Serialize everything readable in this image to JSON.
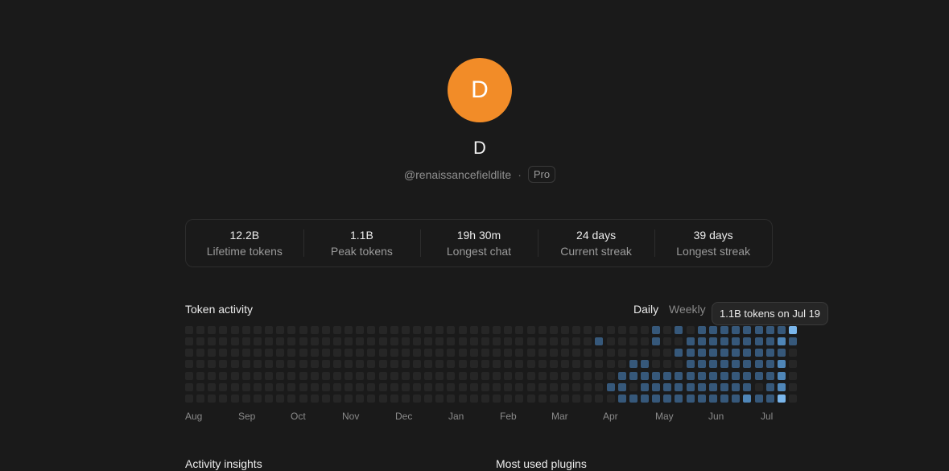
{
  "profile": {
    "avatar_letter": "D",
    "avatar_color": "#f28c28",
    "display_name": "D",
    "handle": "@renaissancefieldlite",
    "separator": "·",
    "plan": "Pro"
  },
  "stats": [
    {
      "value": "12.2B",
      "label": "Lifetime tokens"
    },
    {
      "value": "1.1B",
      "label": "Peak tokens"
    },
    {
      "value": "19h 30m",
      "label": "Longest chat"
    },
    {
      "value": "24 days",
      "label": "Current streak"
    },
    {
      "value": "39 days",
      "label": "Longest streak"
    }
  ],
  "activity": {
    "title": "Token activity",
    "toggle_daily": "Daily",
    "toggle_weekly": "Weekly",
    "selected_view": "Daily",
    "tooltip": "1.1B tokens on Jul 19",
    "months": [
      "Aug",
      "Sep",
      "Oct",
      "Nov",
      "Dec",
      "Jan",
      "Feb",
      "Mar",
      "Apr",
      "May",
      "Jun",
      "Jul"
    ],
    "colors": {
      "level0": "#262626",
      "level1": "#2c3d52",
      "level2": "#36587a",
      "level3": "#4f86b8",
      "level4": "#7ab6eb"
    },
    "levels_by_week": [
      [
        0,
        0,
        0,
        0,
        0,
        0,
        0
      ],
      [
        0,
        0,
        0,
        0,
        0,
        0,
        0
      ],
      [
        0,
        0,
        0,
        0,
        0,
        0,
        0
      ],
      [
        0,
        0,
        0,
        0,
        0,
        0,
        0
      ],
      [
        0,
        0,
        0,
        0,
        0,
        0,
        0
      ],
      [
        0,
        0,
        0,
        0,
        0,
        0,
        0
      ],
      [
        0,
        0,
        0,
        0,
        0,
        0,
        0
      ],
      [
        0,
        0,
        0,
        0,
        0,
        0,
        0
      ],
      [
        0,
        0,
        0,
        0,
        0,
        0,
        0
      ],
      [
        0,
        0,
        0,
        0,
        0,
        0,
        0
      ],
      [
        0,
        0,
        0,
        0,
        0,
        0,
        0
      ],
      [
        0,
        0,
        0,
        0,
        0,
        0,
        0
      ],
      [
        0,
        0,
        0,
        0,
        0,
        0,
        0
      ],
      [
        0,
        0,
        0,
        0,
        0,
        0,
        0
      ],
      [
        0,
        0,
        0,
        0,
        0,
        0,
        0
      ],
      [
        0,
        0,
        0,
        0,
        0,
        0,
        0
      ],
      [
        0,
        0,
        0,
        0,
        0,
        0,
        0
      ],
      [
        0,
        0,
        0,
        0,
        0,
        0,
        0
      ],
      [
        0,
        0,
        0,
        0,
        0,
        0,
        0
      ],
      [
        0,
        0,
        0,
        0,
        0,
        0,
        0
      ],
      [
        0,
        0,
        0,
        0,
        0,
        0,
        0
      ],
      [
        0,
        0,
        0,
        0,
        0,
        0,
        0
      ],
      [
        0,
        0,
        0,
        0,
        0,
        0,
        0
      ],
      [
        0,
        0,
        0,
        0,
        0,
        0,
        0
      ],
      [
        0,
        0,
        0,
        0,
        0,
        0,
        0
      ],
      [
        0,
        0,
        0,
        0,
        0,
        0,
        0
      ],
      [
        0,
        0,
        0,
        0,
        0,
        0,
        0
      ],
      [
        0,
        0,
        0,
        0,
        0,
        0,
        0
      ],
      [
        0,
        0,
        0,
        0,
        0,
        0,
        0
      ],
      [
        0,
        0,
        0,
        0,
        0,
        0,
        0
      ],
      [
        0,
        0,
        0,
        0,
        0,
        0,
        0
      ],
      [
        0,
        0,
        0,
        0,
        0,
        0,
        0
      ],
      [
        0,
        0,
        0,
        0,
        0,
        0,
        0
      ],
      [
        0,
        0,
        0,
        0,
        0,
        0,
        0
      ],
      [
        0,
        0,
        0,
        0,
        0,
        0,
        0
      ],
      [
        0,
        0,
        0,
        0,
        0,
        0,
        0
      ],
      [
        0,
        2,
        0,
        0,
        0,
        0,
        0
      ],
      [
        0,
        0,
        0,
        0,
        0,
        2,
        0
      ],
      [
        0,
        0,
        0,
        0,
        2,
        2,
        2
      ],
      [
        0,
        0,
        0,
        2,
        2,
        0,
        2
      ],
      [
        0,
        0,
        0,
        2,
        2,
        2,
        2
      ],
      [
        2,
        2,
        0,
        0,
        2,
        2,
        2
      ],
      [
        0,
        0,
        0,
        0,
        2,
        2,
        2
      ],
      [
        2,
        0,
        2,
        0,
        2,
        2,
        2
      ],
      [
        0,
        2,
        2,
        2,
        2,
        2,
        2
      ],
      [
        2,
        2,
        2,
        2,
        2,
        2,
        2
      ],
      [
        2,
        2,
        2,
        2,
        2,
        2,
        2
      ],
      [
        2,
        2,
        2,
        2,
        2,
        2,
        2
      ],
      [
        2,
        2,
        2,
        2,
        2,
        2,
        2
      ],
      [
        2,
        2,
        2,
        2,
        2,
        2,
        3
      ],
      [
        2,
        2,
        2,
        2,
        2,
        0,
        2
      ],
      [
        2,
        2,
        2,
        2,
        2,
        2,
        2
      ],
      [
        2,
        3,
        2,
        3,
        3,
        3,
        4
      ],
      [
        4,
        2,
        0,
        0,
        0,
        0,
        0
      ]
    ]
  },
  "bottom": {
    "left_title": "Activity insights",
    "right_title": "Most used plugins"
  }
}
